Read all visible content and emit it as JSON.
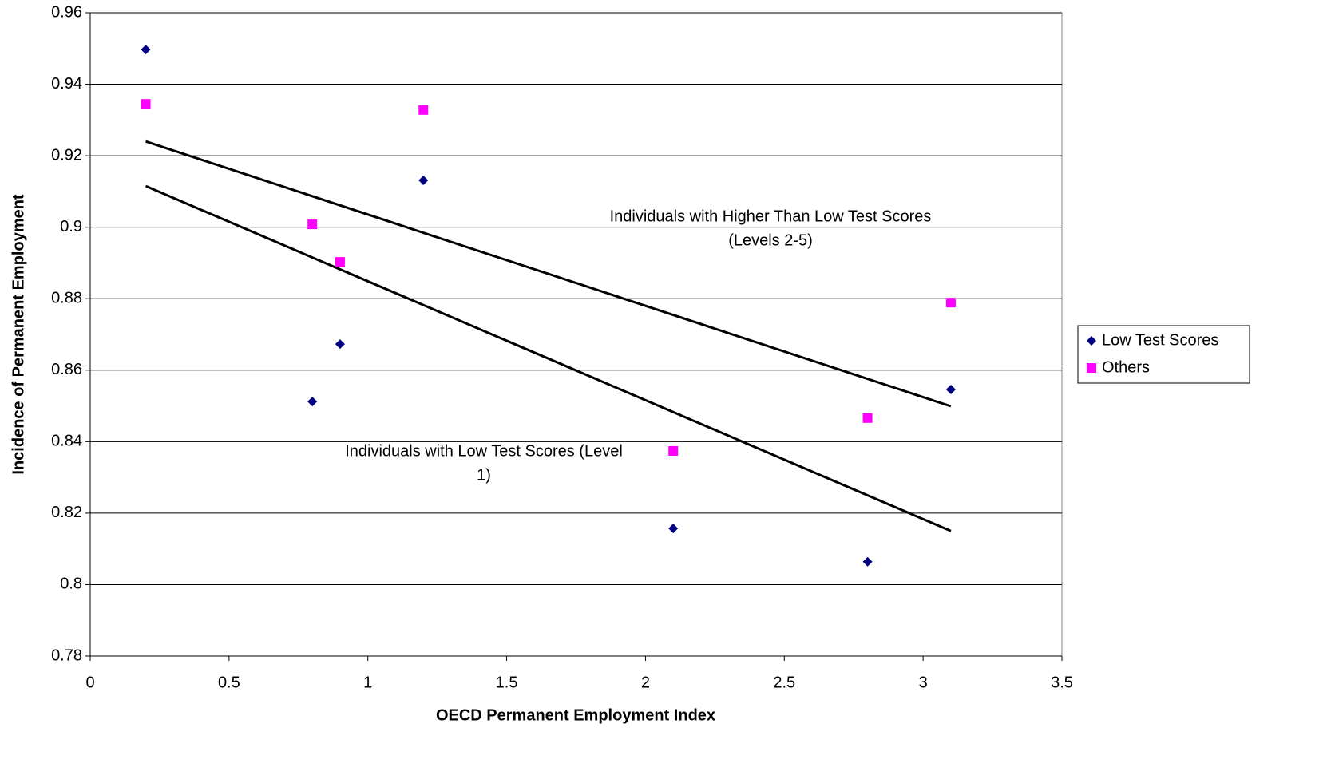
{
  "chart_data": {
    "type": "scatter",
    "xlabel": "OECD Permanent Employment Index",
    "ylabel": "Incidence of Permanent Employment",
    "xlim": [
      0,
      3.5
    ],
    "xticks": [
      0,
      0.5,
      1,
      1.5,
      2,
      2.5,
      3,
      3.5
    ],
    "ylim": [
      0.78,
      0.96
    ],
    "yticks": [
      0.78,
      0.8,
      0.82,
      0.84,
      0.86,
      0.88,
      0.9,
      0.92,
      0.94,
      0.96
    ],
    "grid": true,
    "legend": "right",
    "series": [
      {
        "name": "Low Test Scores",
        "color": "#000080",
        "marker": "diamond",
        "x": [
          0.2,
          0.8,
          0.9,
          1.2,
          2.1,
          2.8,
          3.1
        ],
        "values": [
          0.9497,
          0.8512,
          0.8673,
          0.9131,
          0.8157,
          0.8064,
          0.8546
        ]
      },
      {
        "name": "Others",
        "color": "#ff00ff",
        "marker": "square",
        "x": [
          0.2,
          0.8,
          0.9,
          1.2,
          2.1,
          2.8,
          3.1
        ],
        "values": [
          0.9345,
          0.9008,
          0.8903,
          0.9328,
          0.8374,
          0.8466,
          0.8789
        ]
      }
    ],
    "trendlines": [
      {
        "color": "#000000",
        "x": [
          0.2,
          3.1
        ],
        "values": [
          0.924,
          0.8499
        ]
      },
      {
        "color": "#000000",
        "x": [
          0.2,
          3.1
        ],
        "values": [
          0.9115,
          0.815
        ]
      }
    ],
    "annotations": [
      {
        "lines": [
          "Individuals with Higher Than Low Test Scores",
          "(Levels 2-5)"
        ]
      },
      {
        "lines": [
          "Individuals with Low Test Scores (Level",
          "1)"
        ]
      }
    ]
  }
}
